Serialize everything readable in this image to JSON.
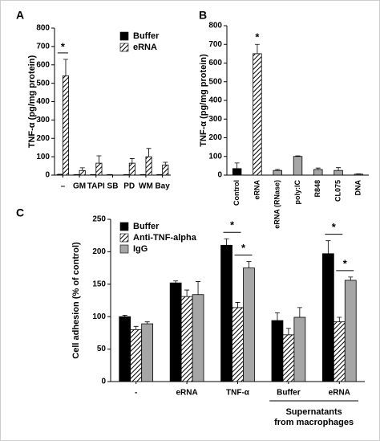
{
  "chart_data": [
    {
      "type": "bar",
      "title": "A",
      "y_label": "TNF-α (pg/mg protein)",
      "categories": [
        "–",
        "GM",
        "TAPI",
        "SB",
        "PD",
        "WM",
        "Bay"
      ],
      "series": [
        {
          "name": "Buffer",
          "color": "#000000",
          "hatched": false,
          "values": [
            3,
            2,
            2,
            2,
            2,
            2,
            2
          ],
          "errors": [
            2,
            1,
            1,
            1,
            1,
            1,
            1
          ]
        },
        {
          "name": "eRNA",
          "color": "#000000",
          "hatched": true,
          "values": [
            540,
            25,
            65,
            0,
            65,
            100,
            55
          ],
          "errors": [
            90,
            15,
            40,
            0,
            25,
            45,
            15
          ]
        }
      ],
      "ylim": [
        0,
        800
      ],
      "yticks": [
        0,
        100,
        200,
        300,
        400,
        500,
        600,
        700,
        800
      ],
      "annotations": [
        "*"
      ]
    },
    {
      "type": "bar",
      "title": "B",
      "y_label": "TNF-α (pg/mg protein)",
      "categories": [
        "Control",
        "eRNA",
        "eRNA (RNase)",
        "poly:IC",
        "R848",
        "CL075",
        "DNA"
      ],
      "values": [
        35,
        650,
        25,
        100,
        30,
        25,
        5
      ],
      "errors": [
        30,
        50,
        5,
        3,
        8,
        15,
        2
      ],
      "colors": [
        "#000000",
        "#000000",
        "#a6a6a6",
        "#a6a6a6",
        "#a6a6a6",
        "#a6a6a6",
        "#a6a6a6"
      ],
      "hatched": [
        false,
        true,
        false,
        false,
        false,
        false,
        false
      ],
      "ylim": [
        0,
        800
      ],
      "yticks": [
        0,
        100,
        200,
        300,
        400,
        500,
        600,
        700,
        800
      ],
      "annotations": [
        "*"
      ]
    },
    {
      "type": "bar",
      "title": "C",
      "y_label": "Cell adhesion (% of control)",
      "categories": [
        "-",
        "eRNA",
        "TNF-α",
        "Buffer",
        "eRNA"
      ],
      "group_label_lines": [
        "Supernatants",
        "from macrophages"
      ],
      "series": [
        {
          "name": "Buffer",
          "color": "#000000",
          "hatched": false,
          "values": [
            100,
            152,
            210,
            94,
            197
          ],
          "errors": [
            2,
            3,
            10,
            12,
            20
          ]
        },
        {
          "name": "Anti-TNF-alpha",
          "color": "#000000",
          "hatched": true,
          "values": [
            80,
            131,
            114,
            72,
            92
          ],
          "errors": [
            5,
            10,
            8,
            10,
            7
          ]
        },
        {
          "name": "IgG",
          "color": "#a6a6a6",
          "hatched": false,
          "values": [
            89,
            134,
            175,
            99,
            156
          ],
          "errors": [
            3,
            20,
            10,
            15,
            5
          ]
        }
      ],
      "ylim": [
        0,
        250
      ],
      "yticks": [
        0,
        50,
        100,
        150,
        200,
        250
      ],
      "annotations": [
        "*",
        "*",
        "*",
        "*"
      ]
    }
  ]
}
